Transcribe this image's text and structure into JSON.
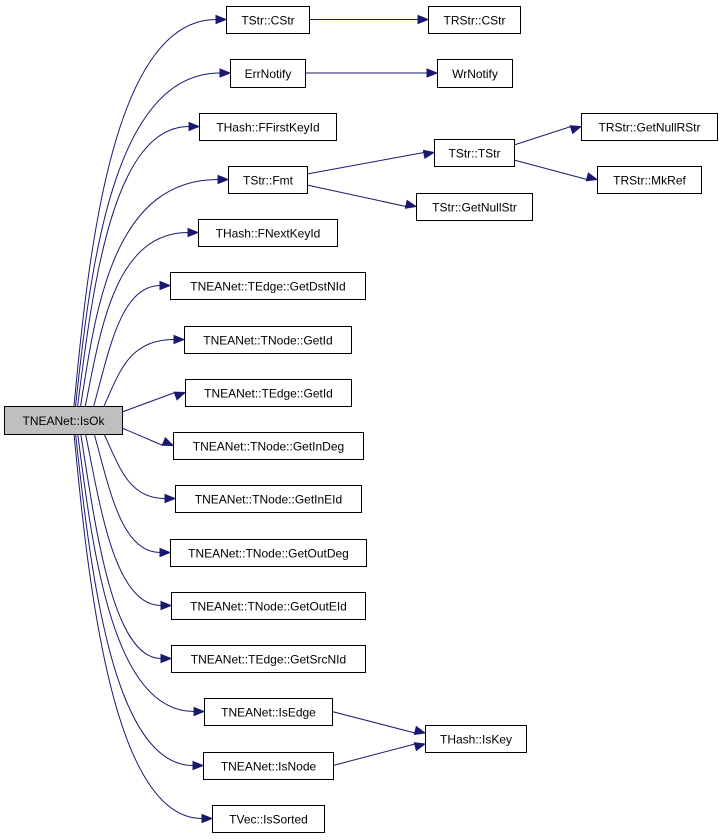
{
  "graph": {
    "root": "TNEANet::IsOk",
    "colors": {
      "edge": "#191970",
      "root_fill": "#bfbfbf",
      "node_fill": "#ffffff",
      "border": "#000000"
    },
    "nodes": [
      {
        "id": "isok",
        "label": "TNEANet::IsOk"
      },
      {
        "id": "tstr_cstr",
        "label": "TStr::CStr"
      },
      {
        "id": "errnotify",
        "label": "ErrNotify"
      },
      {
        "id": "ffirstkeyid",
        "label": "THash::FFirstKeyId"
      },
      {
        "id": "fmt",
        "label": "TStr::Fmt"
      },
      {
        "id": "fnextkeyid",
        "label": "THash::FNextKeyId"
      },
      {
        "id": "getdstnid",
        "label": "TNEANet::TEdge::GetDstNId"
      },
      {
        "id": "node_getid",
        "label": "TNEANet::TNode::GetId"
      },
      {
        "id": "edge_getid",
        "label": "TNEANet::TEdge::GetId"
      },
      {
        "id": "getindeg",
        "label": "TNEANet::TNode::GetInDeg"
      },
      {
        "id": "getineid",
        "label": "TNEANet::TNode::GetInEId"
      },
      {
        "id": "getoutdeg",
        "label": "TNEANet::TNode::GetOutDeg"
      },
      {
        "id": "getouteid",
        "label": "TNEANet::TNode::GetOutEId"
      },
      {
        "id": "getsrcnid",
        "label": "TNEANet::TEdge::GetSrcNId"
      },
      {
        "id": "isedge",
        "label": "TNEANet::IsEdge"
      },
      {
        "id": "isnode",
        "label": "TNEANet::IsNode"
      },
      {
        "id": "issorted",
        "label": "TVec::IsSorted"
      },
      {
        "id": "trstr_cstr",
        "label": "TRStr::CStr"
      },
      {
        "id": "wrnotify",
        "label": "WrNotify"
      },
      {
        "id": "tstr_tstr",
        "label": "TStr::TStr"
      },
      {
        "id": "getnullstr",
        "label": "TStr::GetNullStr"
      },
      {
        "id": "getnullrstr",
        "label": "TRStr::GetNullRStr"
      },
      {
        "id": "mkref",
        "label": "TRStr::MkRef"
      },
      {
        "id": "iskey",
        "label": "THash::IsKey"
      }
    ],
    "edges": [
      [
        "isok",
        "tstr_cstr"
      ],
      [
        "isok",
        "errnotify"
      ],
      [
        "isok",
        "ffirstkeyid"
      ],
      [
        "isok",
        "fmt"
      ],
      [
        "isok",
        "fnextkeyid"
      ],
      [
        "isok",
        "getdstnid"
      ],
      [
        "isok",
        "node_getid"
      ],
      [
        "isok",
        "edge_getid"
      ],
      [
        "isok",
        "getindeg"
      ],
      [
        "isok",
        "getineid"
      ],
      [
        "isok",
        "getoutdeg"
      ],
      [
        "isok",
        "getouteid"
      ],
      [
        "isok",
        "getsrcnid"
      ],
      [
        "isok",
        "isedge"
      ],
      [
        "isok",
        "isnode"
      ],
      [
        "isok",
        "issorted"
      ],
      [
        "tstr_cstr",
        "trstr_cstr"
      ],
      [
        "errnotify",
        "wrnotify"
      ],
      [
        "fmt",
        "tstr_tstr"
      ],
      [
        "fmt",
        "getnullstr"
      ],
      [
        "tstr_tstr",
        "getnullrstr"
      ],
      [
        "tstr_tstr",
        "mkref"
      ],
      [
        "isedge",
        "iskey"
      ],
      [
        "isnode",
        "iskey"
      ]
    ]
  }
}
